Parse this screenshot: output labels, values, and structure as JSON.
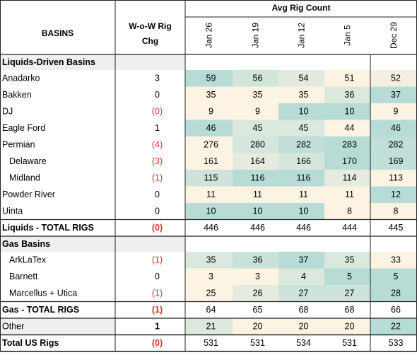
{
  "header": {
    "basins_label": "BASINS",
    "wow_label_line1": "W-o-W Rig",
    "wow_label_line2": "Chg",
    "avg_label": "Avg Rig Count",
    "weeks": [
      "Jan 26",
      "Jan 19",
      "Jan 12",
      "Jan 5",
      "Dec 29"
    ]
  },
  "rows": [
    {
      "type": "section",
      "label": "Liquids-Driven Basins"
    },
    {
      "type": "data",
      "label": "Anadarko",
      "chg": "3",
      "values": [
        59,
        56,
        54,
        51,
        52
      ]
    },
    {
      "type": "data",
      "label": "Bakken",
      "chg": "0",
      "values": [
        35,
        35,
        35,
        36,
        37
      ]
    },
    {
      "type": "data",
      "label": "DJ",
      "chg": "(0)",
      "values": [
        9,
        9,
        10,
        10,
        9
      ]
    },
    {
      "type": "data",
      "label": "Eagle Ford",
      "chg": "1",
      "values": [
        46,
        45,
        45,
        44,
        46
      ]
    },
    {
      "type": "data",
      "label": "Permian",
      "chg": "(4)",
      "values": [
        276,
        280,
        282,
        283,
        282
      ]
    },
    {
      "type": "data",
      "label": "Delaware",
      "chg": "(3)",
      "indent": true,
      "values": [
        161,
        164,
        166,
        170,
        169
      ]
    },
    {
      "type": "data",
      "label": "Midland",
      "chg": "(1)",
      "indent": true,
      "values": [
        115,
        116,
        116,
        114,
        113
      ]
    },
    {
      "type": "data",
      "label": "Powder River",
      "chg": "0",
      "values": [
        11,
        11,
        11,
        11,
        12
      ]
    },
    {
      "type": "data",
      "label": "Uinta",
      "chg": "0",
      "values": [
        10,
        10,
        10,
        8,
        8
      ]
    },
    {
      "type": "total",
      "label": "Liquids - TOTAL RIGS",
      "chg": "(0)",
      "values": [
        446,
        446,
        446,
        444,
        445
      ]
    },
    {
      "type": "section",
      "label": "Gas Basins"
    },
    {
      "type": "data",
      "label": "ArkLaTex",
      "chg": "(1)",
      "indent": true,
      "values": [
        35,
        36,
        37,
        35,
        33
      ]
    },
    {
      "type": "data",
      "label": "Barnett",
      "chg": "0",
      "indent": true,
      "values": [
        3,
        3,
        4,
        5,
        5
      ]
    },
    {
      "type": "data",
      "label": "Marcellus + Utica",
      "chg": "(1)",
      "indent": true,
      "values": [
        25,
        26,
        27,
        27,
        28
      ]
    },
    {
      "type": "total",
      "label": "Gas - TOTAL RIGS",
      "chg": "(1)",
      "values": [
        64,
        65,
        68,
        68,
        66
      ]
    },
    {
      "type": "other",
      "label": "Other",
      "chg": "1",
      "values": [
        21,
        20,
        20,
        20,
        22
      ]
    },
    {
      "type": "total",
      "label": "Total US Rigs",
      "chg": "(0)",
      "values": [
        531,
        531,
        534,
        531,
        533
      ]
    }
  ],
  "colors": {
    "negative": "#e03030",
    "section_fill": "#efefef",
    "warm_cell": "#fdf3e3",
    "cool_cell": "#b7dcd6",
    "border": "#222222"
  }
}
